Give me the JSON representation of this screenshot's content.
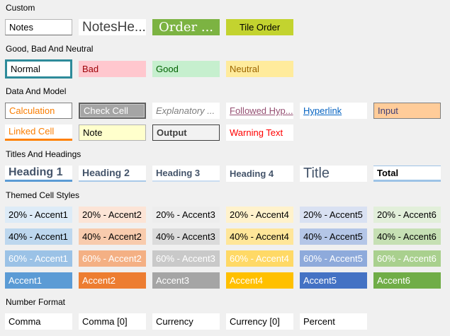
{
  "colors": {
    "background": "#F0F0F0",
    "selection_border": "#2E8B9A"
  },
  "sections": [
    {
      "label": "Custom",
      "rows": [
        [
          {
            "label": "Notes",
            "style": "st-notes"
          },
          {
            "label": "NotesHe...",
            "style": "st-notesheading"
          },
          {
            "label": "Order ...",
            "style": "st-order",
            "bg": "#7CB342",
            "fg": "#FFFFFF"
          },
          {
            "label": "Tile Order",
            "style": "st-tileorder",
            "bg": "#C3D32F",
            "fg": "#000000"
          }
        ]
      ]
    },
    {
      "label": "Good, Bad And Neutral",
      "rows": [
        [
          {
            "label": "Normal",
            "style": "st-normal",
            "selected": true
          },
          {
            "label": "Bad",
            "style": "st-bad",
            "bg": "#FFC7CE",
            "fg": "#9C0006"
          },
          {
            "label": "Good",
            "style": "st-good",
            "bg": "#C6EFCE",
            "fg": "#006100"
          },
          {
            "label": "Neutral",
            "style": "st-neutral",
            "bg": "#FFEB9C",
            "fg": "#9C6500"
          }
        ]
      ]
    },
    {
      "label": "Data And Model",
      "rows": [
        [
          {
            "label": "Calculation",
            "style": "st-calculation",
            "fg": "#FA7D00"
          },
          {
            "label": "Check Cell",
            "style": "st-checkcell",
            "bg": "#A5A5A5",
            "fg": "#FFFFFF"
          },
          {
            "label": "Explanatory ...",
            "style": "st-explanatory",
            "fg": "#7F7F7F"
          },
          {
            "label": "Followed Hyp...",
            "style": "st-followed-hyperlink",
            "fg": "#954F72"
          },
          {
            "label": "Hyperlink",
            "style": "st-hyperlink",
            "fg": "#0563C1"
          },
          {
            "label": "Input",
            "style": "st-input",
            "bg": "#FFCC99",
            "fg": "#3F3F76"
          }
        ],
        [
          {
            "label": "Linked Cell",
            "style": "st-linked-cell",
            "fg": "#FA7D00"
          },
          {
            "label": "Note",
            "style": "st-note",
            "bg": "#FFFFCC"
          },
          {
            "label": "Output",
            "style": "st-output",
            "bg": "#F2F2F2",
            "fg": "#3F3F3F"
          },
          {
            "label": "Warning Text",
            "style": "st-warning-text",
            "fg": "#FF0000"
          }
        ]
      ]
    },
    {
      "label": "Titles And Headings",
      "rows": [
        [
          {
            "label": "Heading 1",
            "style": "st-heading1",
            "fg": "#44546A"
          },
          {
            "label": "Heading 2",
            "style": "st-heading2",
            "fg": "#44546A"
          },
          {
            "label": "Heading 3",
            "style": "st-heading3",
            "fg": "#44546A"
          },
          {
            "label": "Heading 4",
            "style": "st-heading4",
            "fg": "#44546A"
          },
          {
            "label": "Title",
            "style": "st-title",
            "fg": "#44546A"
          },
          {
            "label": "Total",
            "style": "st-total"
          }
        ]
      ]
    },
    {
      "label": "Themed Cell Styles",
      "rows": [
        [
          {
            "label": "20% - Accent1",
            "bg": "#DDEBF7",
            "fg": "#000000"
          },
          {
            "label": "20% - Accent2",
            "bg": "#FCE4D6",
            "fg": "#000000"
          },
          {
            "label": "20% - Accent3",
            "bg": "#EDEDED",
            "fg": "#000000"
          },
          {
            "label": "20% - Accent4",
            "bg": "#FFF2CC",
            "fg": "#000000"
          },
          {
            "label": "20% - Accent5",
            "bg": "#D9E1F2",
            "fg": "#000000"
          },
          {
            "label": "20% - Accent6",
            "bg": "#E2EFDA",
            "fg": "#000000"
          }
        ],
        [
          {
            "label": "40% - Accent1",
            "bg": "#BDD7EE",
            "fg": "#000000"
          },
          {
            "label": "40% - Accent2",
            "bg": "#F8CBAD",
            "fg": "#000000"
          },
          {
            "label": "40% - Accent3",
            "bg": "#DBDBDB",
            "fg": "#000000"
          },
          {
            "label": "40% - Accent4",
            "bg": "#FFE699",
            "fg": "#000000"
          },
          {
            "label": "40% - Accent5",
            "bg": "#B4C6E7",
            "fg": "#000000"
          },
          {
            "label": "40% - Accent6",
            "bg": "#C6E0B4",
            "fg": "#000000"
          }
        ],
        [
          {
            "label": "60% - Accent1",
            "bg": "#9BC2E6",
            "fg": "#FFFFFF"
          },
          {
            "label": "60% - Accent2",
            "bg": "#F4B084",
            "fg": "#FFFFFF"
          },
          {
            "label": "60% - Accent3",
            "bg": "#C9C9C9",
            "fg": "#FFFFFF"
          },
          {
            "label": "60% - Accent4",
            "bg": "#FFD966",
            "fg": "#FFFFFF"
          },
          {
            "label": "60% - Accent5",
            "bg": "#8EAADB",
            "fg": "#FFFFFF"
          },
          {
            "label": "60% - Accent6",
            "bg": "#A9D08E",
            "fg": "#FFFFFF"
          }
        ],
        [
          {
            "label": "Accent1",
            "bg": "#5B9BD5",
            "fg": "#FFFFFF"
          },
          {
            "label": "Accent2",
            "bg": "#ED7D31",
            "fg": "#FFFFFF"
          },
          {
            "label": "Accent3",
            "bg": "#A5A5A5",
            "fg": "#FFFFFF"
          },
          {
            "label": "Accent4",
            "bg": "#FFC000",
            "fg": "#FFFFFF"
          },
          {
            "label": "Accent5",
            "bg": "#4472C4",
            "fg": "#FFFFFF"
          },
          {
            "label": "Accent6",
            "bg": "#70AD47",
            "fg": "#FFFFFF"
          }
        ]
      ]
    },
    {
      "label": "Number Format",
      "rows": [
        [
          {
            "label": "Comma"
          },
          {
            "label": "Comma [0]"
          },
          {
            "label": "Currency"
          },
          {
            "label": "Currency [0]"
          },
          {
            "label": "Percent"
          }
        ]
      ]
    }
  ]
}
